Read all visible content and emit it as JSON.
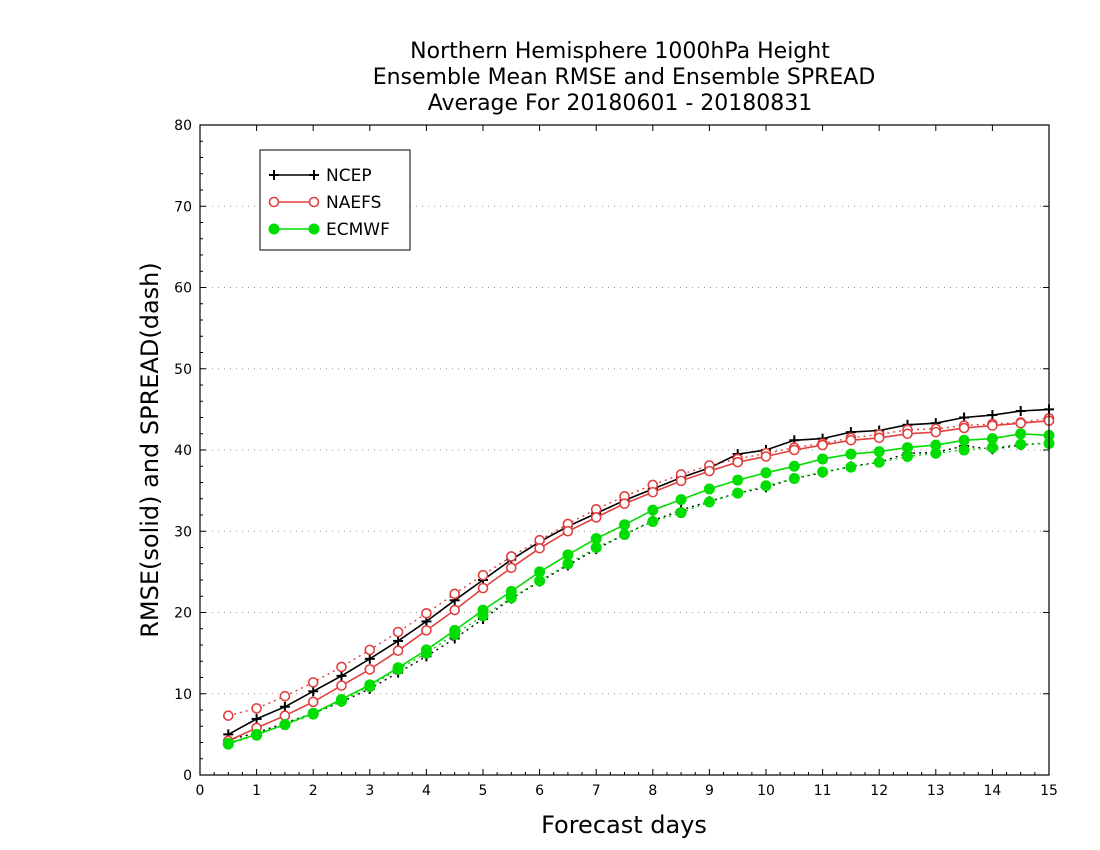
{
  "chart_data": {
    "type": "line",
    "title": [
      "Northern Hemisphere 1000hPa Height",
      "Ensemble Mean RMSE and Ensemble SPREAD",
      "Average For 20180601 - 20180831"
    ],
    "xlabel": "Forecast days",
    "ylabel": "RMSE(solid) and SPREAD(dash)",
    "xlim": [
      0,
      15
    ],
    "ylim": [
      0,
      80
    ],
    "x_ticks": [
      "0",
      "1",
      "2",
      "3",
      "4",
      "5",
      "6",
      "7",
      "8",
      "9",
      "10",
      "11",
      "12",
      "13",
      "14",
      "15"
    ],
    "y_ticks": [
      "0",
      "10",
      "20",
      "30",
      "40",
      "50",
      "60",
      "70",
      "80"
    ],
    "grid": "horizontal dotted",
    "legend_position": "top-left",
    "x": [
      0.5,
      1,
      1.5,
      2,
      2.5,
      3,
      3.5,
      4,
      4.5,
      5,
      5.5,
      6,
      6.5,
      7,
      7.5,
      8,
      8.5,
      9,
      9.5,
      10,
      10.5,
      11,
      11.5,
      12,
      12.5,
      13,
      13.5,
      14,
      14.5,
      15
    ],
    "series": [
      {
        "name": "NCEP",
        "color": "#000000",
        "marker": "plus",
        "rmse": [
          5.0,
          6.9,
          8.4,
          10.3,
          12.2,
          14.3,
          16.5,
          18.9,
          21.5,
          24.0,
          26.5,
          28.7,
          30.6,
          32.2,
          33.8,
          35.2,
          36.6,
          37.8,
          39.5,
          40.0,
          41.2,
          41.4,
          42.2,
          42.4,
          43.1,
          43.3,
          44.0,
          44.3,
          44.8,
          45.0
        ],
        "spread": [
          4.3,
          5.2,
          6.4,
          7.6,
          9.0,
          10.6,
          12.6,
          14.6,
          16.8,
          19.2,
          21.7,
          23.8,
          25.8,
          27.8,
          29.6,
          31.3,
          32.6,
          33.7,
          34.7,
          35.4,
          36.5,
          37.2,
          38.0,
          38.5,
          39.6,
          39.7,
          40.5,
          40.1,
          40.6,
          40.9
        ]
      },
      {
        "name": "NAEFS",
        "color": "#e04040",
        "marker": "open-circle",
        "rmse": [
          4.2,
          5.8,
          7.3,
          9.0,
          11.0,
          13.0,
          15.3,
          17.8,
          20.3,
          23.0,
          25.5,
          27.9,
          30.0,
          31.7,
          33.4,
          34.8,
          36.2,
          37.4,
          38.5,
          39.2,
          40.0,
          40.6,
          41.2,
          41.5,
          42.0,
          42.2,
          42.7,
          43.0,
          43.3,
          43.6
        ],
        "spread": [
          7.3,
          8.2,
          9.7,
          11.4,
          13.3,
          15.4,
          17.6,
          19.9,
          22.3,
          24.6,
          26.9,
          28.9,
          30.9,
          32.7,
          34.3,
          35.7,
          37.0,
          38.1,
          38.9,
          39.6,
          40.3,
          40.8,
          41.5,
          41.9,
          42.5,
          42.6,
          43.0,
          43.2,
          43.4,
          43.9
        ]
      },
      {
        "name": "ECMWF",
        "color": "#00dd00",
        "marker": "filled-circle",
        "rmse": [
          3.9,
          5.0,
          6.2,
          7.6,
          9.3,
          11.1,
          13.2,
          15.4,
          17.8,
          20.3,
          22.6,
          25.0,
          27.1,
          29.1,
          30.8,
          32.6,
          33.9,
          35.2,
          36.3,
          37.2,
          38.0,
          38.9,
          39.5,
          39.8,
          40.3,
          40.6,
          41.2,
          41.4,
          42.0,
          41.8
        ],
        "spread": [
          3.8,
          4.9,
          6.2,
          7.5,
          9.1,
          10.9,
          13.0,
          15.0,
          17.3,
          19.6,
          21.8,
          23.9,
          26.0,
          28.0,
          29.6,
          31.2,
          32.3,
          33.6,
          34.7,
          35.6,
          36.5,
          37.3,
          37.9,
          38.5,
          39.2,
          39.6,
          40.0,
          40.3,
          40.7,
          40.8
        ]
      }
    ]
  }
}
